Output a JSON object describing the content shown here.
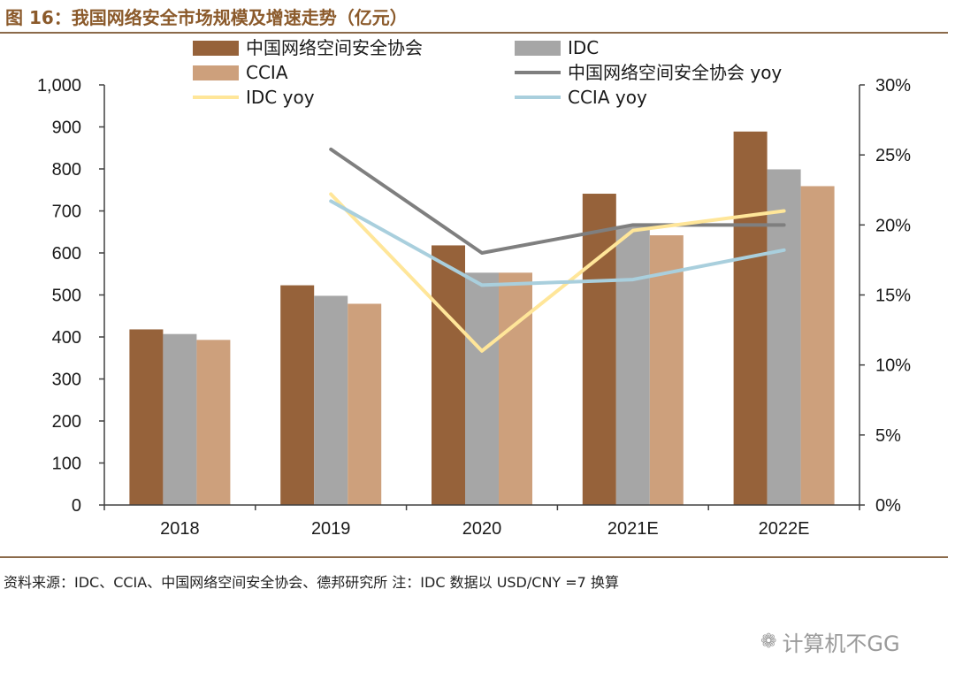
{
  "header": {
    "title": "图 16：我国网络安全市场规模及增速走势（亿元）"
  },
  "footer": {
    "source": "资料来源：IDC、CCIA、中国网络空间安全协会、德邦研究所 注：IDC 数据以 USD/CNY =7 换算",
    "watermark_text": "计算机不GG",
    "watermark_icon": "wechat-icon"
  },
  "chart_data": {
    "type": "bar",
    "categories": [
      "2018",
      "2019",
      "2020",
      "2021E",
      "2022E"
    ],
    "series": [
      {
        "name": "中国网络空间安全协会",
        "kind": "bar",
        "axis": "left",
        "color": "#96623A",
        "values": [
          418,
          523,
          618,
          741,
          889
        ]
      },
      {
        "name": "IDC",
        "kind": "bar",
        "axis": "left",
        "color": "#A6A6A6",
        "values": [
          407,
          498,
          553,
          664,
          799
        ]
      },
      {
        "name": "CCIA",
        "kind": "bar",
        "axis": "left",
        "color": "#CDA07C",
        "values": [
          393,
          479,
          553,
          642,
          759
        ]
      },
      {
        "name": "中国网络空间安全协会 yoy",
        "kind": "line",
        "axis": "right",
        "color": "#7F7F7F",
        "values": [
          null,
          25.4,
          18.0,
          20.0,
          20.0
        ]
      },
      {
        "name": "IDC yoy",
        "kind": "line",
        "axis": "right",
        "color": "#FFE699",
        "values": [
          null,
          22.2,
          11.0,
          19.6,
          21.0
        ]
      },
      {
        "name": "CCIA yoy",
        "kind": "line",
        "axis": "right",
        "color": "#A9CFDD",
        "values": [
          null,
          21.7,
          15.7,
          16.1,
          18.2
        ]
      }
    ],
    "y_left": {
      "min": 0,
      "max": 1000,
      "ticks": [
        "0",
        "100",
        "200",
        "300",
        "400",
        "500",
        "600",
        "700",
        "800",
        "900",
        "1,000"
      ]
    },
    "y_right": {
      "min": 0,
      "max": 30,
      "ticks": [
        "0%",
        "5%",
        "10%",
        "15%",
        "20%",
        "25%",
        "30%"
      ]
    },
    "legend_placement": "top",
    "grid": false
  }
}
